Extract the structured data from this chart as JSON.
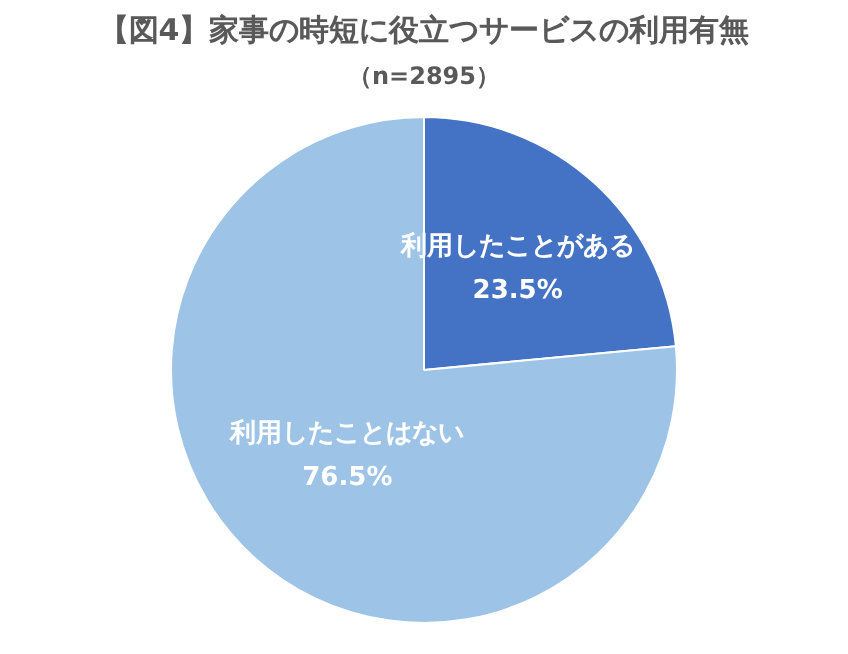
{
  "chart_data": {
    "type": "pie",
    "title": "【図4】家事の時短に役立つサービスの利用有無",
    "subtitle": "（n=2895）",
    "categories": [
      "利用したことがある",
      "利用したことはない"
    ],
    "values": [
      23.5,
      76.5
    ],
    "colors": [
      "#4472c4",
      "#9dc3e6"
    ],
    "value_labels": [
      "23.5%",
      "76.5%"
    ],
    "legend": false
  }
}
